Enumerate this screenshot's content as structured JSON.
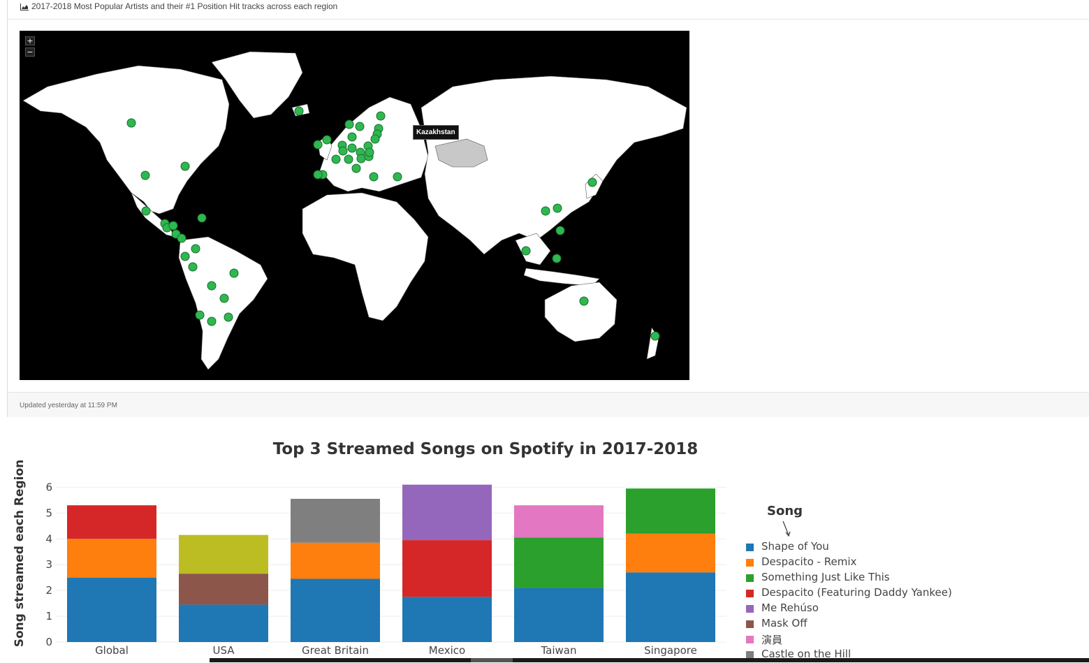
{
  "panel": {
    "title": "2017-2018 Most Popular Artists and their #1 Position Hit tracks across each region",
    "updated": "Updated yesterday at 11:59 PM"
  },
  "map": {
    "zoom_in": "+",
    "zoom_out": "−",
    "tooltip": "Kazakhstan",
    "background_color": "#000000",
    "land_color": "#ffffff",
    "highlight_color": "#c8c8c8",
    "marker_color": "#2eb84f"
  },
  "chart": {
    "title": "Top 3 Streamed Songs on Spotify in 2017-2018",
    "ylabel": "Song streamed each Region",
    "legend_title": "Song"
  },
  "chart_data": {
    "type": "bar",
    "stacked": true,
    "title": "Top 3 Streamed Songs on Spotify in 2017-2018",
    "xlabel": "",
    "ylabel": "Song streamed each Region",
    "ylim": [
      0,
      6.2
    ],
    "yticks": [
      0,
      1,
      2,
      3,
      4,
      5,
      6
    ],
    "categories": [
      "Global",
      "USA",
      "Great Britain",
      "Mexico",
      "Taiwan",
      "Singapore"
    ],
    "legend_title": "Song",
    "legend_position": "right",
    "series": [
      {
        "name": "Shape of You",
        "color": "#1f77b4",
        "values": [
          2.5,
          1.45,
          2.45,
          1.75,
          2.1,
          2.7
        ]
      },
      {
        "name": "Despacito - Remix",
        "color": "#ff7f0e",
        "values": [
          1.5,
          0,
          1.4,
          0,
          0,
          1.5
        ]
      },
      {
        "name": "Something Just Like This",
        "color": "#2ca02c",
        "values": [
          0,
          0,
          0,
          0,
          1.95,
          1.75
        ]
      },
      {
        "name": "Despacito (Featuring Daddy Yankee)",
        "color": "#d62728",
        "values": [
          1.3,
          0,
          0,
          2.2,
          0,
          0
        ]
      },
      {
        "name": "Me Rehúso",
        "color": "#9467bd",
        "values": [
          0,
          0,
          0,
          2.15,
          0,
          0
        ]
      },
      {
        "name": "Mask Off",
        "color": "#8c564b",
        "values": [
          0,
          1.2,
          0,
          0,
          0,
          0
        ]
      },
      {
        "name": "演員",
        "color": "#e377c2",
        "values": [
          0,
          0,
          0,
          0,
          1.25,
          0
        ]
      },
      {
        "name": "Castle on the Hill",
        "color": "#7f7f7f",
        "values": [
          0,
          0,
          1.7,
          0,
          0,
          0
        ]
      },
      {
        "name": "",
        "color": "#bcbd22",
        "values": [
          0,
          1.5,
          0,
          0,
          0,
          0
        ]
      }
    ]
  }
}
